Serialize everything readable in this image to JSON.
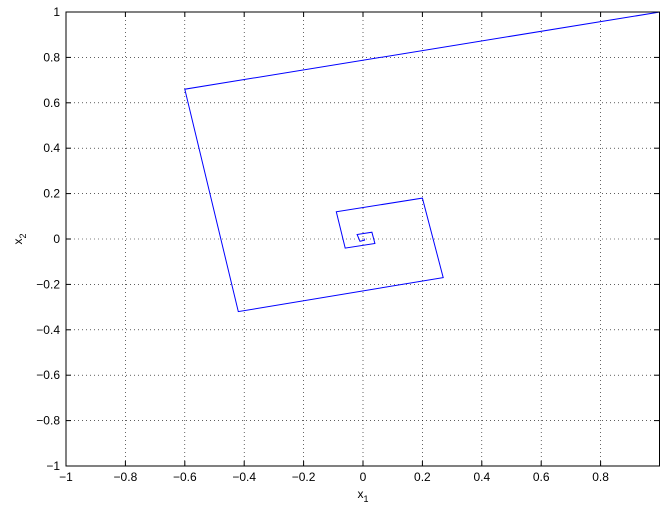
{
  "chart_data": {
    "type": "line",
    "xlabel": "x",
    "xlabel_sub": "1",
    "ylabel": "x",
    "ylabel_sub": "2",
    "xlim": [
      -1,
      1
    ],
    "ylim": [
      -1,
      1
    ],
    "grid": true,
    "grid_style": "dotted",
    "x_ticks": [
      -1,
      -0.8,
      -0.6,
      -0.4,
      -0.2,
      0,
      0.2,
      0.4,
      0.6,
      0.8
    ],
    "x_tick_labels": [
      "−1",
      "−0.8",
      "−0.6",
      "−0.4",
      "−0.2",
      "0",
      "0.2",
      "0.4",
      "0.6",
      "0.8"
    ],
    "y_ticks": [
      -1,
      -0.8,
      -0.6,
      -0.4,
      -0.2,
      0,
      0.2,
      0.4,
      0.6,
      0.8,
      1
    ],
    "y_tick_labels": [
      "−1",
      "−0.8",
      "−0.6",
      "−0.4",
      "−0.2",
      "0",
      "0.2",
      "0.4",
      "0.6",
      "0.8",
      "1"
    ],
    "series": [
      {
        "color": "#0000ff",
        "x": [
          1.0,
          -0.6,
          -0.42,
          0.27,
          0.2,
          -0.09,
          -0.06,
          0.04,
          0.03,
          -0.02,
          -0.01,
          0.005,
          0.003
        ],
        "y": [
          1.0,
          0.66,
          -0.32,
          -0.17,
          0.18,
          0.12,
          -0.04,
          -0.02,
          0.03,
          0.02,
          -0.01,
          -0.005,
          0.002
        ]
      }
    ]
  }
}
